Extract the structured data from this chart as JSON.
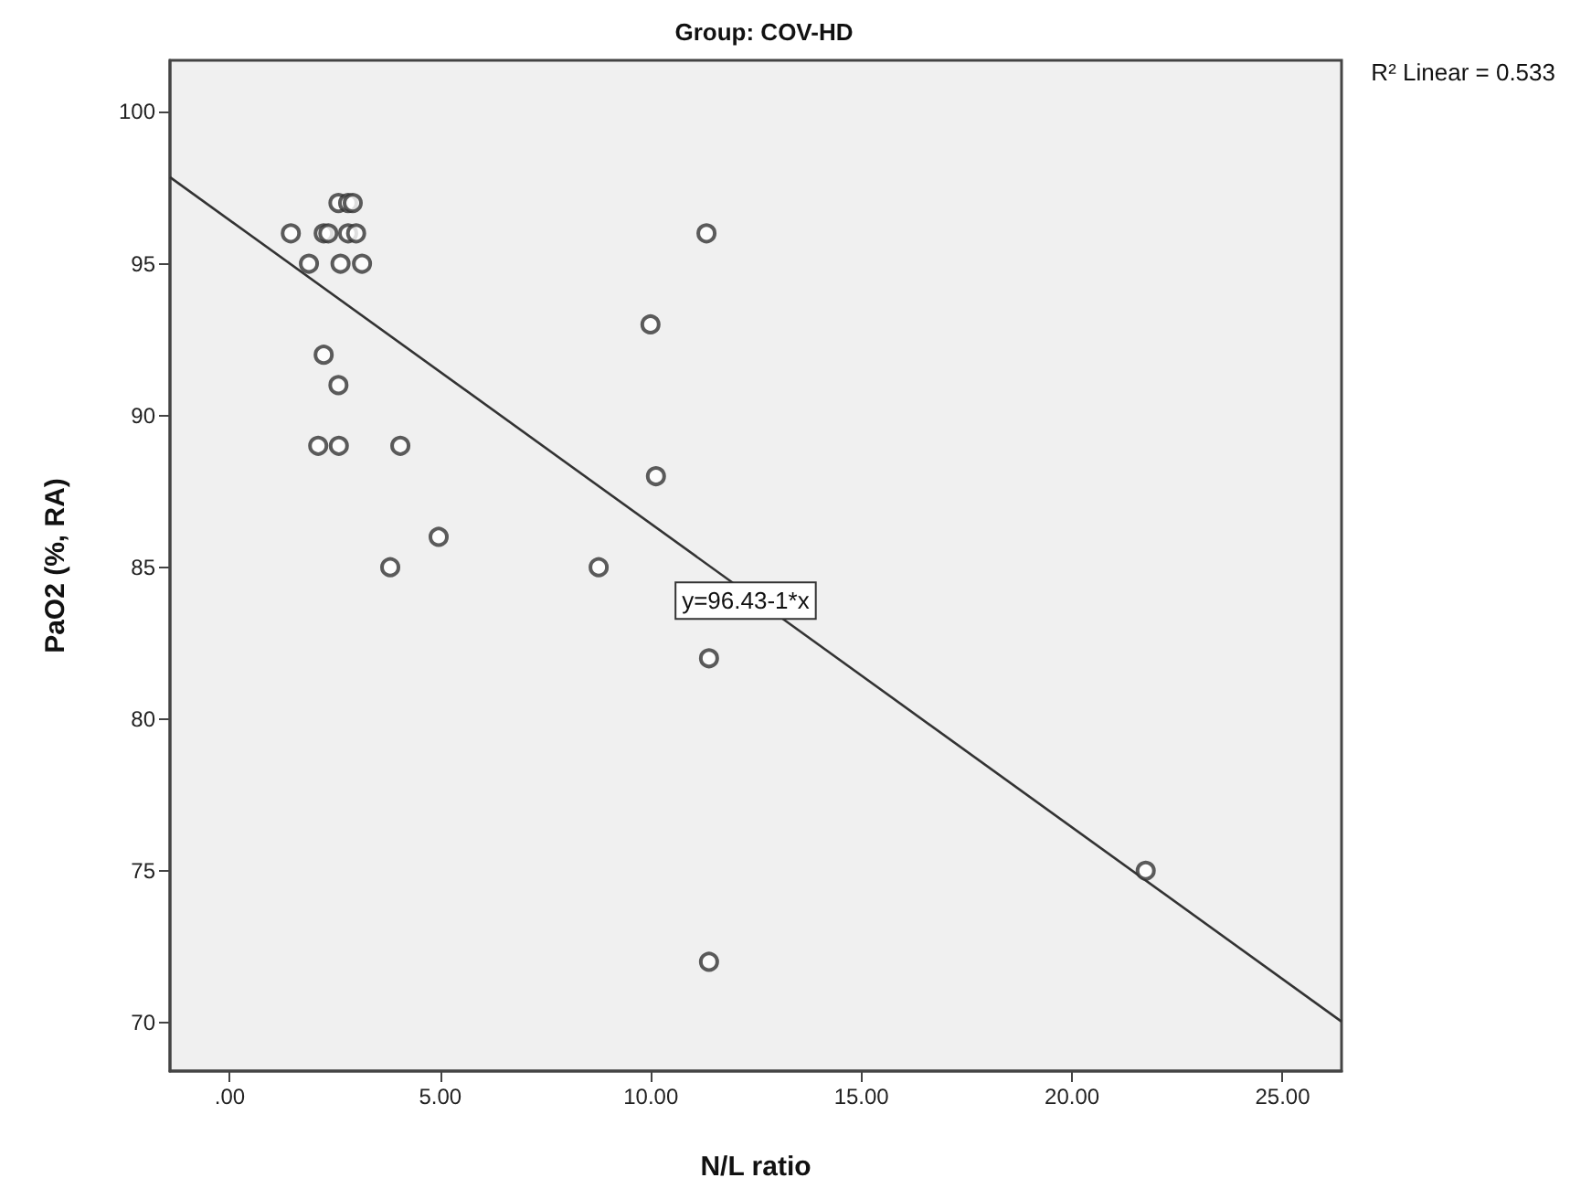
{
  "chart_data": {
    "type": "scatter",
    "title": "Group: COV-HD",
    "xlabel": "N/L ratio",
    "ylabel": "PaO2 (%, RA)",
    "xlim": [
      -1.42,
      26.4
    ],
    "ylim": [
      68.4,
      101.7
    ],
    "xticks": [
      {
        "value": 0,
        "label": ".00"
      },
      {
        "value": 5,
        "label": "5.00"
      },
      {
        "value": 10,
        "label": "10.00"
      },
      {
        "value": 15,
        "label": "15.00"
      },
      {
        "value": 20,
        "label": "20.00"
      },
      {
        "value": 25,
        "label": "25.00"
      }
    ],
    "yticks": [
      70,
      75,
      80,
      85,
      90,
      95,
      100
    ],
    "grid": false,
    "marker": "circle",
    "series": [
      {
        "color": "#333333",
        "x": [
          1.45,
          1.88,
          2.23,
          2.34,
          2.63,
          2.58,
          2.81,
          2.92,
          2.81,
          3.0,
          3.14,
          2.23,
          2.58,
          2.1,
          2.59,
          4.05,
          4.96,
          11.32,
          9.99,
          10.12,
          3.81,
          8.76,
          11.38,
          11.38,
          21.75
        ],
        "values": [
          96,
          95,
          96,
          96,
          95,
          97,
          97,
          97,
          96,
          96,
          95,
          92,
          91,
          89,
          89,
          89,
          86,
          96,
          93,
          88,
          85,
          85,
          82,
          72,
          75
        ]
      },
      {
        "type": "line",
        "color": "#333333",
        "marker": "none",
        "line_style": "solid",
        "x": [
          -1.42,
          26.4
        ],
        "values": [
          97.85,
          70.03
        ]
      }
    ],
    "annotations": [
      "R² Linear = 0.533",
      {
        "text": "y=96.43-1*x",
        "x": 12.25,
        "y": 83.9
      }
    ]
  }
}
